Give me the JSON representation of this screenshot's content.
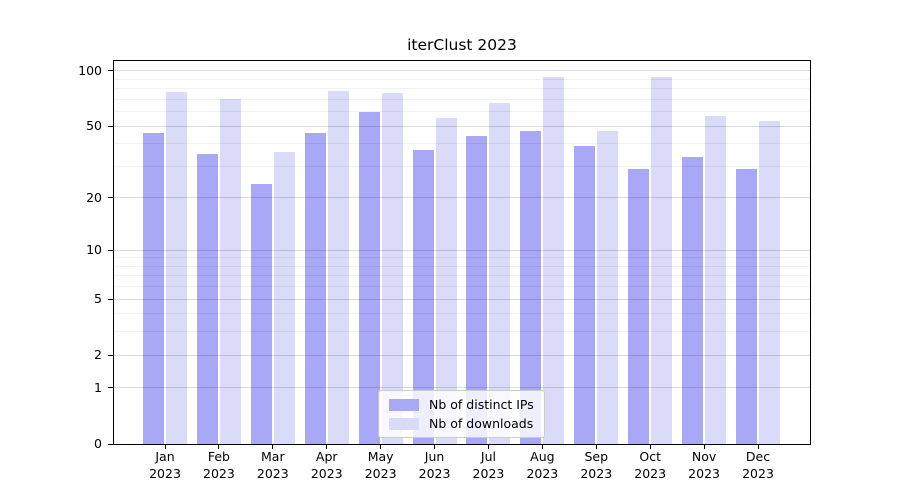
{
  "chart_data": {
    "type": "bar",
    "title": "iterClust 2023",
    "categories": [
      "Jan 2023",
      "Feb 2023",
      "Mar 2023",
      "Apr 2023",
      "May 2023",
      "Jun 2023",
      "Jul 2023",
      "Aug 2023",
      "Sep 2023",
      "Oct 2023",
      "Nov 2023",
      "Dec 2023"
    ],
    "months": [
      {
        "month": "Jan",
        "year": "2023"
      },
      {
        "month": "Feb",
        "year": "2023"
      },
      {
        "month": "Mar",
        "year": "2023"
      },
      {
        "month": "Apr",
        "year": "2023"
      },
      {
        "month": "May",
        "year": "2023"
      },
      {
        "month": "Jun",
        "year": "2023"
      },
      {
        "month": "Jul",
        "year": "2023"
      },
      {
        "month": "Aug",
        "year": "2023"
      },
      {
        "month": "Sep",
        "year": "2023"
      },
      {
        "month": "Oct",
        "year": "2023"
      },
      {
        "month": "Nov",
        "year": "2023"
      },
      {
        "month": "Dec",
        "year": "2023"
      }
    ],
    "series": [
      {
        "name": "Nb of distinct IPs",
        "color": "#a8a8f6",
        "values": [
          46,
          35,
          24,
          46,
          60,
          37,
          44,
          47,
          39,
          29,
          34,
          29
        ]
      },
      {
        "name": "Nb of downloads",
        "color": "#dadaf9",
        "values": [
          77,
          70,
          36,
          78,
          76,
          55,
          67,
          92,
          47,
          92,
          57,
          53
        ]
      }
    ],
    "y_scale": "log1p",
    "y_ticks": [
      0,
      1,
      2,
      5,
      10,
      20,
      50,
      100
    ],
    "y_tick_labels": [
      "0",
      "1",
      "2",
      "5",
      "10",
      "20",
      "50",
      "100"
    ],
    "y_minor_ticks": [
      3,
      4,
      6,
      7,
      8,
      9,
      30,
      40,
      60,
      70,
      80,
      90
    ],
    "y_top": 113,
    "xlabel": "",
    "ylabel": "",
    "grid": "horizontal",
    "legend_position": "bottom-center"
  }
}
